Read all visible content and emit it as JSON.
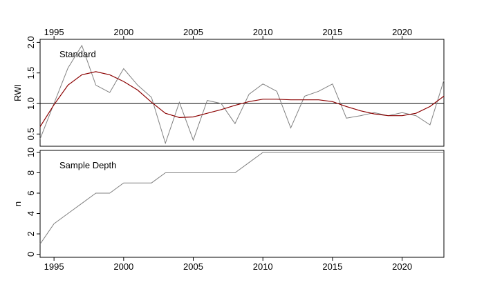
{
  "chart_data": [
    {
      "type": "line",
      "label": "Standard",
      "ylabel": "RWI",
      "xlim": [
        1994,
        2023
      ],
      "ylim": [
        0.3,
        2.05
      ],
      "x_ticks": [
        1995,
        2000,
        2005,
        2010,
        2015,
        2020
      ],
      "x_tick_labels": [
        "1995",
        "2000",
        "2005",
        "2010",
        "2015",
        "2020"
      ],
      "y_ticks": [
        0.5,
        1.0,
        1.5,
        2.0
      ],
      "y_tick_labels": [
        "0.5",
        "1.0",
        "1.5",
        "2.0"
      ],
      "reference_line": 1.0,
      "x_axis_position": "top",
      "colors": {
        "raw": "#808080",
        "smooth": "#8b0000",
        "reference": "#000000"
      },
      "series": [
        {
          "x": [
            1994,
            1995,
            1996,
            1997,
            1998,
            1999,
            2000,
            2001,
            2002,
            2003,
            2004,
            2005,
            2006,
            2007,
            2008,
            2009,
            2010,
            2011,
            2012,
            2013,
            2014,
            2015,
            2016,
            2017,
            2018,
            2019,
            2020,
            2021,
            2022,
            2023
          ],
          "values": [
            0.42,
            1.0,
            1.58,
            1.95,
            1.3,
            1.18,
            1.57,
            1.3,
            1.1,
            0.35,
            1.02,
            0.4,
            1.05,
            1.0,
            0.67,
            1.15,
            1.32,
            1.2,
            0.6,
            1.12,
            1.2,
            1.32,
            0.76,
            0.8,
            0.85,
            0.8,
            0.85,
            0.8,
            0.65,
            1.38
          ]
        },
        {
          "x": [
            1994,
            1995,
            1996,
            1997,
            1998,
            1999,
            2000,
            2001,
            2002,
            2003,
            2004,
            2005,
            2006,
            2007,
            2008,
            2009,
            2010,
            2011,
            2012,
            2013,
            2014,
            2015,
            2016,
            2017,
            2018,
            2019,
            2020,
            2021,
            2022,
            2023
          ],
          "values": [
            0.62,
            0.98,
            1.3,
            1.47,
            1.52,
            1.47,
            1.36,
            1.22,
            1.02,
            0.84,
            0.77,
            0.78,
            0.84,
            0.9,
            0.97,
            1.03,
            1.07,
            1.07,
            1.06,
            1.06,
            1.06,
            1.03,
            0.95,
            0.88,
            0.83,
            0.8,
            0.8,
            0.84,
            0.95,
            1.12
          ]
        }
      ]
    },
    {
      "type": "line",
      "label": "Sample Depth",
      "ylabel": "n",
      "xlim": [
        1994,
        2023
      ],
      "ylim": [
        -0.3,
        10.2
      ],
      "x_ticks": [
        1995,
        2000,
        2005,
        2010,
        2015,
        2020
      ],
      "x_tick_labels": [
        "1995",
        "2000",
        "2005",
        "2010",
        "2015",
        "2020"
      ],
      "y_ticks": [
        0,
        2,
        4,
        6,
        8,
        10
      ],
      "y_tick_labels": [
        "0",
        "2",
        "4",
        "6",
        "8",
        "10"
      ],
      "x_axis_position": "bottom",
      "colors": {
        "line": "#808080"
      },
      "series": [
        {
          "x": [
            1994,
            1995,
            1996,
            1997,
            1998,
            1999,
            2000,
            2001,
            2002,
            2003,
            2004,
            2005,
            2006,
            2007,
            2008,
            2009,
            2010,
            2011,
            2012,
            2013,
            2014,
            2015,
            2016,
            2017,
            2018,
            2019,
            2020,
            2021,
            2022,
            2023
          ],
          "values": [
            1,
            3,
            4,
            5,
            6,
            6,
            7,
            7,
            7,
            8,
            8,
            8,
            8,
            8,
            8,
            9,
            10,
            10,
            10,
            10,
            10,
            10,
            10,
            10,
            10,
            10,
            10,
            10,
            10,
            10
          ]
        }
      ]
    }
  ]
}
